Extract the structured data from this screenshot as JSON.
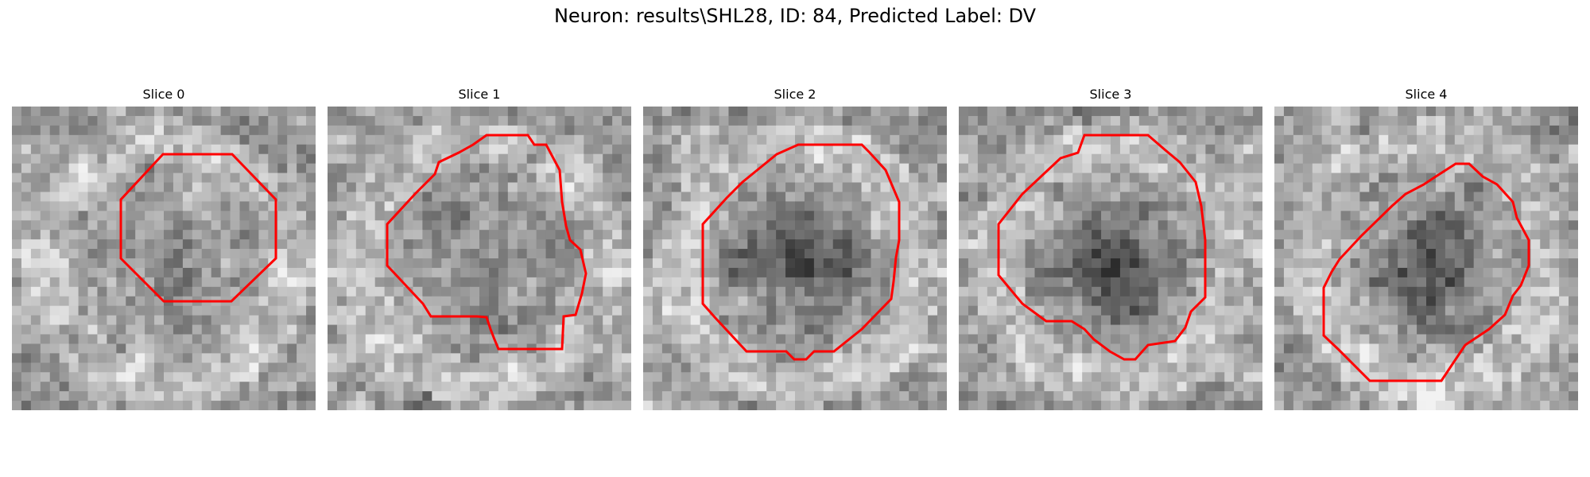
{
  "figure": {
    "title": "Neuron: results\\SHL28, ID: 84, Predicted Label: DV",
    "contour_color": "#ff0000"
  },
  "slices": [
    {
      "title": "Slice 0"
    },
    {
      "title": "Slice 1"
    },
    {
      "title": "Slice 2"
    },
    {
      "title": "Slice 3"
    },
    {
      "title": "Slice 4"
    }
  ]
}
